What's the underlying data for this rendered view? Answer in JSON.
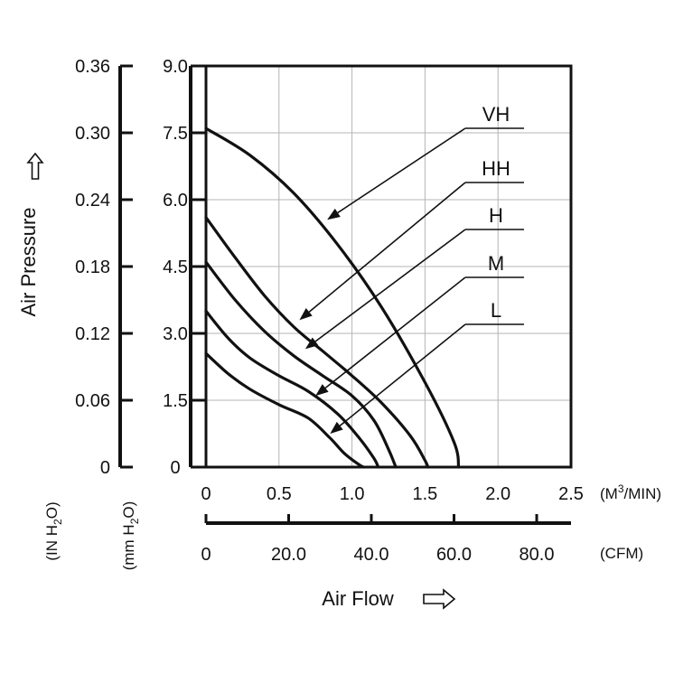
{
  "chart_data": {
    "type": "line",
    "xlabel": "Air Flow",
    "ylabel": "Air Pressure",
    "x_primary": {
      "unit": "(M³/MIN)",
      "unit_parts": {
        "pre": "(M",
        "sup": "3",
        "post": "/MIN)"
      },
      "range": [
        0,
        2.5
      ],
      "ticks": [
        "0",
        "0.5",
        "1.0",
        "1.5",
        "2.0",
        "2.5"
      ]
    },
    "x_secondary": {
      "unit": "(CFM)",
      "range": [
        0,
        88.3
      ],
      "ticks": [
        {
          "value": 0,
          "label": "0"
        },
        {
          "value": 20,
          "label": "20.0"
        },
        {
          "value": 40,
          "label": "40.0"
        },
        {
          "value": 60,
          "label": "60.0"
        },
        {
          "value": 80,
          "label": "80.0"
        }
      ]
    },
    "y_primary": {
      "unit": "(mm H₂O)",
      "unit_parts": {
        "pre": "(mm H",
        "sub": "2",
        "post": "O)"
      },
      "range": [
        0,
        9.0
      ],
      "ticks": [
        "0",
        "1.5",
        "3.0",
        "4.5",
        "6.0",
        "7.5",
        "9.0"
      ]
    },
    "y_secondary": {
      "unit": "(IN H₂O)",
      "unit_parts": {
        "pre": "(IN H",
        "sub": "2",
        "post": "O)"
      },
      "range": [
        0,
        0.36
      ],
      "ticks": [
        "0",
        "0.06",
        "0.12",
        "0.18",
        "0.24",
        "0.30",
        "0.36"
      ]
    },
    "grid": true,
    "series": [
      {
        "name": "VH",
        "points": [
          [
            0,
            7.6
          ],
          [
            0.3,
            7.0
          ],
          [
            0.6,
            6.15
          ],
          [
            0.9,
            5.0
          ],
          [
            1.2,
            3.6
          ],
          [
            1.5,
            1.9
          ],
          [
            1.7,
            0.55
          ],
          [
            1.73,
            0
          ]
        ]
      },
      {
        "name": "HH",
        "points": [
          [
            0,
            5.6
          ],
          [
            0.2,
            4.7
          ],
          [
            0.4,
            3.85
          ],
          [
            0.6,
            3.15
          ],
          [
            0.8,
            2.6
          ],
          [
            1.0,
            2.05
          ],
          [
            1.2,
            1.45
          ],
          [
            1.4,
            0.7
          ],
          [
            1.5,
            0.15
          ],
          [
            1.52,
            0
          ]
        ]
      },
      {
        "name": "H",
        "points": [
          [
            0,
            4.6
          ],
          [
            0.2,
            3.75
          ],
          [
            0.4,
            3.05
          ],
          [
            0.6,
            2.5
          ],
          [
            0.8,
            2.05
          ],
          [
            1.0,
            1.6
          ],
          [
            1.15,
            1.05
          ],
          [
            1.25,
            0.4
          ],
          [
            1.3,
            0
          ]
        ]
      },
      {
        "name": "M",
        "points": [
          [
            0,
            3.5
          ],
          [
            0.15,
            2.9
          ],
          [
            0.3,
            2.45
          ],
          [
            0.5,
            2.05
          ],
          [
            0.7,
            1.7
          ],
          [
            0.9,
            1.2
          ],
          [
            1.05,
            0.65
          ],
          [
            1.15,
            0.2
          ],
          [
            1.18,
            0
          ]
        ]
      },
      {
        "name": "L",
        "points": [
          [
            0,
            2.55
          ],
          [
            0.15,
            2.1
          ],
          [
            0.3,
            1.75
          ],
          [
            0.5,
            1.4
          ],
          [
            0.7,
            1.1
          ],
          [
            0.85,
            0.65
          ],
          [
            0.95,
            0.3
          ],
          [
            1.05,
            0.05
          ],
          [
            1.08,
            0
          ]
        ]
      }
    ],
    "callout_targets": [
      {
        "name": "VH",
        "at": [
          0.83,
          5.55
        ]
      },
      {
        "name": "HH",
        "at": [
          0.64,
          3.3
        ]
      },
      {
        "name": "H",
        "at": [
          0.68,
          2.65
        ]
      },
      {
        "name": "M",
        "at": [
          0.75,
          1.6
        ]
      },
      {
        "name": "L",
        "at": [
          0.85,
          0.75
        ]
      }
    ]
  }
}
